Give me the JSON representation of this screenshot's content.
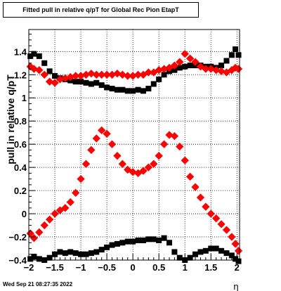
{
  "chart_data": {
    "type": "scatter",
    "title": "Fitted pull in relative q/pT for Global Rec Pion EtapT",
    "xlabel": "η",
    "ylabel": "pull in relative q/pT",
    "xlim": [
      -2.0,
      2.05
    ],
    "ylim": [
      -0.4,
      1.59
    ],
    "xticks": [
      "−2",
      "−1.5",
      "−1",
      "−0.5",
      "0",
      "0.5",
      "1",
      "1.5",
      "2"
    ],
    "yticks": [
      "−0.4",
      "−0.2",
      "0",
      "0.2",
      "0.4",
      "0.6",
      "0.8",
      "1",
      "1.2",
      "1.4"
    ],
    "grid": true,
    "timestamp": "Wed Sep 21 08:27:35 2022",
    "series": [
      {
        "color": "#000000",
        "x": [
          -1.97,
          -1.9,
          -1.8,
          -1.7,
          -1.6,
          -1.5,
          -1.4,
          -1.3,
          -1.2,
          -1.1,
          -1.0,
          -0.9,
          -0.8,
          -0.7,
          -0.6,
          -0.5,
          -0.4,
          -0.3,
          -0.2,
          -0.1,
          0.0,
          0.1,
          0.2,
          0.3,
          0.4,
          0.5,
          0.6,
          0.7,
          0.8,
          0.9,
          1.0,
          1.1,
          1.2,
          1.3,
          1.4,
          1.5,
          1.6,
          1.7,
          1.8,
          1.9,
          1.97,
          2.03
        ],
        "y": [
          1.36,
          1.38,
          1.36,
          1.3,
          1.23,
          1.19,
          1.17,
          1.16,
          1.15,
          1.14,
          1.14,
          1.13,
          1.12,
          1.13,
          1.11,
          1.09,
          1.08,
          1.07,
          1.07,
          1.06,
          1.06,
          1.07,
          1.06,
          1.08,
          1.12,
          1.16,
          1.2,
          1.23,
          1.24,
          1.26,
          1.27,
          1.28,
          1.28,
          1.28,
          1.27,
          1.27,
          1.26,
          1.28,
          1.32,
          1.37,
          1.42,
          1.37
        ]
      },
      {
        "color": "#ff0000",
        "x": [
          -1.97,
          -1.9,
          -1.8,
          -1.7,
          -1.6,
          -1.5,
          -1.4,
          -1.3,
          -1.2,
          -1.1,
          -1.0,
          -0.9,
          -0.8,
          -0.7,
          -0.6,
          -0.5,
          -0.4,
          -0.3,
          -0.2,
          -0.1,
          0.0,
          0.1,
          0.2,
          0.3,
          0.4,
          0.5,
          0.6,
          0.7,
          0.8,
          0.9,
          1.0,
          1.1,
          1.2,
          1.3,
          1.4,
          1.5,
          1.6,
          1.7,
          1.8,
          1.9,
          1.97,
          2.03
        ],
        "y": [
          1.27,
          1.25,
          1.24,
          1.2,
          1.14,
          1.13,
          1.16,
          1.17,
          1.18,
          1.19,
          1.19,
          1.2,
          1.21,
          1.2,
          1.2,
          1.2,
          1.2,
          1.21,
          1.2,
          1.19,
          1.19,
          1.2,
          1.2,
          1.22,
          1.22,
          1.24,
          1.25,
          1.26,
          1.28,
          1.31,
          1.38,
          1.34,
          1.31,
          1.27,
          1.25,
          1.25,
          1.24,
          1.23,
          1.22,
          1.24,
          1.26,
          1.25
        ]
      },
      {
        "color": "#000000",
        "x": [
          -1.97,
          -1.9,
          -1.8,
          -1.7,
          -1.6,
          -1.5,
          -1.4,
          -1.3,
          -1.2,
          -1.1,
          -1.0,
          -0.9,
          -0.8,
          -0.7,
          -0.6,
          -0.5,
          -0.4,
          -0.3,
          -0.2,
          -0.1,
          0.0,
          0.1,
          0.2,
          0.3,
          0.4,
          0.5,
          0.6,
          0.7,
          0.8,
          0.9,
          1.0,
          1.1,
          1.2,
          1.3,
          1.4,
          1.5,
          1.6,
          1.7,
          1.8,
          1.9,
          1.97,
          2.03
        ],
        "y": [
          -0.39,
          -0.37,
          -0.39,
          -0.4,
          -0.38,
          -0.35,
          -0.33,
          -0.34,
          -0.33,
          -0.34,
          -0.35,
          -0.35,
          -0.34,
          -0.33,
          -0.31,
          -0.29,
          -0.27,
          -0.26,
          -0.25,
          -0.24,
          -0.24,
          -0.23,
          -0.23,
          -0.22,
          -0.22,
          -0.23,
          -0.21,
          -0.25,
          -0.33,
          -0.38,
          -0.4,
          -0.38,
          -0.35,
          -0.33,
          -0.32,
          -0.3,
          -0.3,
          -0.32,
          -0.34,
          -0.36,
          -0.39,
          -0.41
        ]
      },
      {
        "color": "#ff0000",
        "x": [
          -1.97,
          -1.9,
          -1.8,
          -1.7,
          -1.6,
          -1.5,
          -1.4,
          -1.3,
          -1.2,
          -1.1,
          -1.0,
          -0.9,
          -0.8,
          -0.7,
          -0.6,
          -0.5,
          -0.4,
          -0.3,
          -0.2,
          -0.1,
          0.0,
          0.1,
          0.2,
          0.3,
          0.4,
          0.5,
          0.6,
          0.7,
          0.8,
          0.9,
          1.0,
          1.1,
          1.2,
          1.3,
          1.4,
          1.5,
          1.6,
          1.7,
          1.8,
          1.9,
          1.97,
          2.03
        ],
        "y": [
          -0.17,
          -0.21,
          -0.16,
          -0.1,
          -0.05,
          0.0,
          0.03,
          0.05,
          0.1,
          0.18,
          0.3,
          0.43,
          0.55,
          0.65,
          0.72,
          0.69,
          0.6,
          0.5,
          0.43,
          0.38,
          0.36,
          0.35,
          0.37,
          0.4,
          0.43,
          0.5,
          0.6,
          0.68,
          0.67,
          0.58,
          0.46,
          0.32,
          0.23,
          0.14,
          0.06,
          0.0,
          -0.04,
          -0.09,
          -0.14,
          -0.2,
          -0.26,
          -0.32
        ]
      }
    ]
  }
}
